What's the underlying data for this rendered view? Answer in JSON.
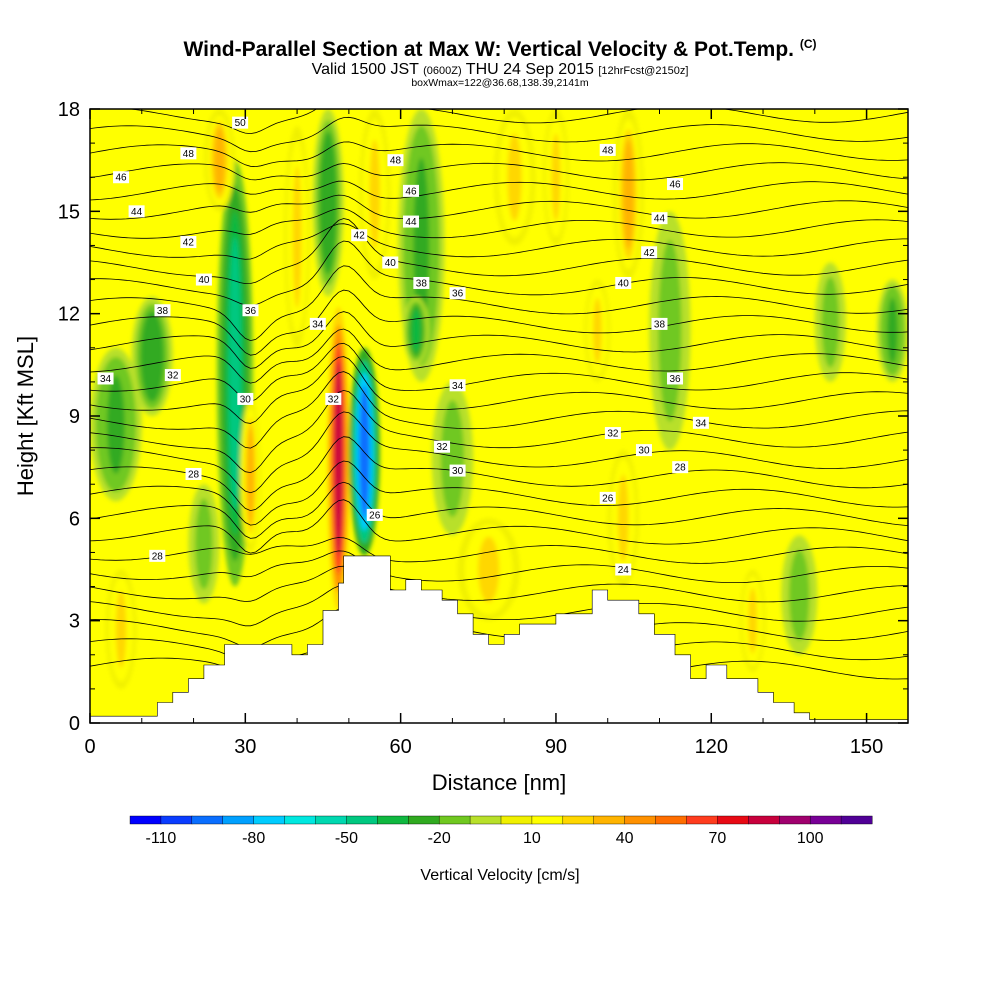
{
  "header": {
    "title": "Wind-Parallel Section at Max W: Vertical Velocity & Pot.Temp.",
    "title_mark": "(C)",
    "valid_prefix": "Valid 1500 JST",
    "valid_utc": "(0600Z)",
    "valid_date": "THU 24 Sep 2015",
    "forecast": "[12hrFcst@2150z]",
    "box_info": "boxWmax=122@36.68,138.39,2141m"
  },
  "chart_data": {
    "type": "heatmap",
    "title": "Wind-Parallel Section at Max W: Vertical Velocity & Pot.Temp.",
    "xlabel": "Distance [nm]",
    "ylabel": "Height [Kft MSL]",
    "xlim": [
      0,
      158
    ],
    "ylim": [
      0,
      18
    ],
    "x_ticks": [
      0,
      30,
      60,
      90,
      120,
      150
    ],
    "y_ticks": [
      0,
      3,
      6,
      9,
      12,
      15,
      18
    ],
    "colorbar": {
      "title": "Vertical Velocity [cm/s]",
      "labels": [
        -110,
        -80,
        -50,
        -20,
        10,
        40,
        70,
        100
      ],
      "levels": [
        -120,
        -110,
        -100,
        -90,
        -80,
        -70,
        -60,
        -50,
        -40,
        -30,
        -20,
        -10,
        0,
        10,
        20,
        30,
        40,
        50,
        60,
        70,
        80,
        90,
        100,
        110,
        120
      ],
      "colors": [
        "#0000ff",
        "#0a3cff",
        "#0a6eff",
        "#00a0ff",
        "#00ccff",
        "#00e8e0",
        "#00d8b0",
        "#00c880",
        "#10b840",
        "#30aa20",
        "#70c820",
        "#b8e02a",
        "#f0f000",
        "#ffff00",
        "#ffd700",
        "#ffb400",
        "#ff9100",
        "#ff6e00",
        "#ff3c1e",
        "#e80a14",
        "#c8003c",
        "#a0006e",
        "#780096",
        "#500096"
      ]
    },
    "terrain": {
      "x": [
        0,
        13,
        13,
        16,
        16,
        19,
        19,
        22,
        22,
        26,
        26,
        39,
        39,
        42,
        42,
        45,
        45,
        48,
        48,
        49,
        49,
        52,
        52,
        58,
        58,
        61,
        61,
        64,
        64,
        68,
        68,
        71,
        71,
        74,
        74,
        77,
        77,
        80,
        80,
        83,
        83,
        87,
        87,
        90,
        90,
        97,
        97,
        100,
        100,
        106,
        106,
        109,
        109,
        113,
        113,
        116,
        116,
        119,
        119,
        123,
        123,
        129,
        129,
        132,
        132,
        136,
        136,
        139,
        139,
        143,
        143,
        158
      ],
      "y": [
        0.2,
        0.2,
        0.6,
        0.6,
        0.9,
        0.9,
        1.3,
        1.3,
        1.7,
        1.7,
        2.3,
        2.3,
        2.0,
        2.0,
        2.3,
        2.3,
        3.3,
        3.3,
        4.1,
        4.1,
        4.9,
        4.9,
        4.9,
        4.9,
        3.9,
        3.9,
        4.2,
        4.2,
        3.9,
        3.9,
        3.6,
        3.6,
        3.2,
        3.2,
        2.6,
        2.6,
        2.3,
        2.3,
        2.6,
        2.6,
        2.9,
        2.9,
        2.9,
        2.9,
        3.2,
        3.2,
        3.9,
        3.9,
        3.6,
        3.6,
        3.2,
        3.2,
        2.6,
        2.6,
        2.0,
        2.0,
        1.3,
        1.3,
        1.7,
        1.7,
        1.3,
        1.3,
        0.9,
        0.9,
        0.6,
        0.6,
        0.3,
        0.3,
        0.1,
        0.1,
        0.1,
        0.1
      ]
    },
    "features": [
      {
        "x": 48,
        "y_min": 3.3,
        "y_max": 12.2,
        "w": 85,
        "half_width": 2.2
      },
      {
        "x": 53,
        "y_min": 4.9,
        "y_max": 11.0,
        "w": -100,
        "half_width": 3.0
      },
      {
        "x": 28,
        "y_min": 4.0,
        "y_max": 16.5,
        "w": -45,
        "half_width": 3.5
      },
      {
        "x": 31,
        "y_min": 5.0,
        "y_max": 9.5,
        "w": 35,
        "half_width": 2.0
      },
      {
        "x": 40,
        "y_min": 11.0,
        "y_max": 17.5,
        "w": 25,
        "half_width": 2.5
      },
      {
        "x": 46,
        "y_min": 12.5,
        "y_max": 18.0,
        "w": -30,
        "half_width": 3.0
      },
      {
        "x": 25,
        "y_min": 15.0,
        "y_max": 18.0,
        "w": 30,
        "half_width": 3.0
      },
      {
        "x": 64,
        "y_min": 10.0,
        "y_max": 18.0,
        "w": -25,
        "half_width": 4.5
      },
      {
        "x": 63,
        "y_min": 10.5,
        "y_max": 12.5,
        "w": -40,
        "half_width": 2.5
      },
      {
        "x": 12,
        "y_min": 9.0,
        "y_max": 12.5,
        "w": -30,
        "half_width": 4.0
      },
      {
        "x": 5,
        "y_min": 6.5,
        "y_max": 11.0,
        "w": -25,
        "half_width": 5.0
      },
      {
        "x": 55,
        "y_min": 13.0,
        "y_max": 18.0,
        "w": 25,
        "half_width": 3.0
      },
      {
        "x": 82,
        "y_min": 14.0,
        "y_max": 18.0,
        "w": 20,
        "half_width": 4.0
      },
      {
        "x": 90,
        "y_min": 14.0,
        "y_max": 18.0,
        "w": 25,
        "half_width": 2.5
      },
      {
        "x": 104,
        "y_min": 13.0,
        "y_max": 18.0,
        "w": 30,
        "half_width": 3.0
      },
      {
        "x": 98,
        "y_min": 10.0,
        "y_max": 13.0,
        "w": 20,
        "half_width": 2.5
      },
      {
        "x": 112,
        "y_min": 8.0,
        "y_max": 15.0,
        "w": -18,
        "half_width": 4.0
      },
      {
        "x": 143,
        "y_min": 10.0,
        "y_max": 13.5,
        "w": -18,
        "half_width": 3.0
      },
      {
        "x": 155,
        "y_min": 10.0,
        "y_max": 13.0,
        "w": -25,
        "half_width": 3.0
      },
      {
        "x": 6,
        "y_min": 1.0,
        "y_max": 4.5,
        "w": 22,
        "half_width": 3.0
      },
      {
        "x": 22,
        "y_min": 3.5,
        "y_max": 7.0,
        "w": -20,
        "half_width": 3.0
      },
      {
        "x": 77,
        "y_min": 3.0,
        "y_max": 6.0,
        "w": 22,
        "half_width": 6.0
      },
      {
        "x": 103,
        "y_min": 4.0,
        "y_max": 8.0,
        "w": 22,
        "half_width": 3.0
      },
      {
        "x": 128,
        "y_min": 1.5,
        "y_max": 4.5,
        "w": 20,
        "half_width": 2.5
      },
      {
        "x": 137,
        "y_min": 2.0,
        "y_max": 5.5,
        "w": -18,
        "half_width": 3.5
      },
      {
        "x": 70,
        "y_min": 5.5,
        "y_max": 10.0,
        "w": -18,
        "half_width": 4.0
      }
    ],
    "contour_labels": [
      {
        "text": "50",
        "x": 29,
        "y": 17.6
      },
      {
        "text": "48",
        "x": 19,
        "y": 16.7
      },
      {
        "text": "48",
        "x": 59,
        "y": 16.5
      },
      {
        "text": "48",
        "x": 100,
        "y": 16.8
      },
      {
        "text": "46",
        "x": 6,
        "y": 16.0
      },
      {
        "text": "46",
        "x": 62,
        "y": 15.6
      },
      {
        "text": "46",
        "x": 113,
        "y": 15.8
      },
      {
        "text": "44",
        "x": 9,
        "y": 15.0
      },
      {
        "text": "44",
        "x": 62,
        "y": 14.7
      },
      {
        "text": "44",
        "x": 110,
        "y": 14.8
      },
      {
        "text": "42",
        "x": 19,
        "y": 14.1
      },
      {
        "text": "42",
        "x": 52,
        "y": 14.3
      },
      {
        "text": "42",
        "x": 108,
        "y": 13.8
      },
      {
        "text": "40",
        "x": 22,
        "y": 13.0
      },
      {
        "text": "40",
        "x": 58,
        "y": 13.5
      },
      {
        "text": "40",
        "x": 103,
        "y": 12.9
      },
      {
        "text": "38",
        "x": 14,
        "y": 12.1
      },
      {
        "text": "38",
        "x": 64,
        "y": 12.9
      },
      {
        "text": "38",
        "x": 110,
        "y": 11.7
      },
      {
        "text": "36",
        "x": 31,
        "y": 12.1
      },
      {
        "text": "36",
        "x": 71,
        "y": 12.6
      },
      {
        "text": "36",
        "x": 113,
        "y": 10.1
      },
      {
        "text": "34",
        "x": 3,
        "y": 10.1
      },
      {
        "text": "34",
        "x": 44,
        "y": 11.7
      },
      {
        "text": "34",
        "x": 71,
        "y": 9.9
      },
      {
        "text": "34",
        "x": 118,
        "y": 8.8
      },
      {
        "text": "32",
        "x": 16,
        "y": 10.2
      },
      {
        "text": "32",
        "x": 47,
        "y": 9.5
      },
      {
        "text": "32",
        "x": 68,
        "y": 8.1
      },
      {
        "text": "32",
        "x": 101,
        "y": 8.5
      },
      {
        "text": "30",
        "x": 30,
        "y": 9.5
      },
      {
        "text": "30",
        "x": 71,
        "y": 7.4
      },
      {
        "text": "30",
        "x": 107,
        "y": 8.0
      },
      {
        "text": "28",
        "x": 20,
        "y": 7.3
      },
      {
        "text": "28",
        "x": 114,
        "y": 7.5
      },
      {
        "text": "26",
        "x": 55,
        "y": 6.1
      },
      {
        "text": "26",
        "x": 100,
        "y": 6.6
      },
      {
        "text": "28",
        "x": 13,
        "y": 4.9
      },
      {
        "text": "24",
        "x": 103,
        "y": 4.5
      }
    ]
  }
}
